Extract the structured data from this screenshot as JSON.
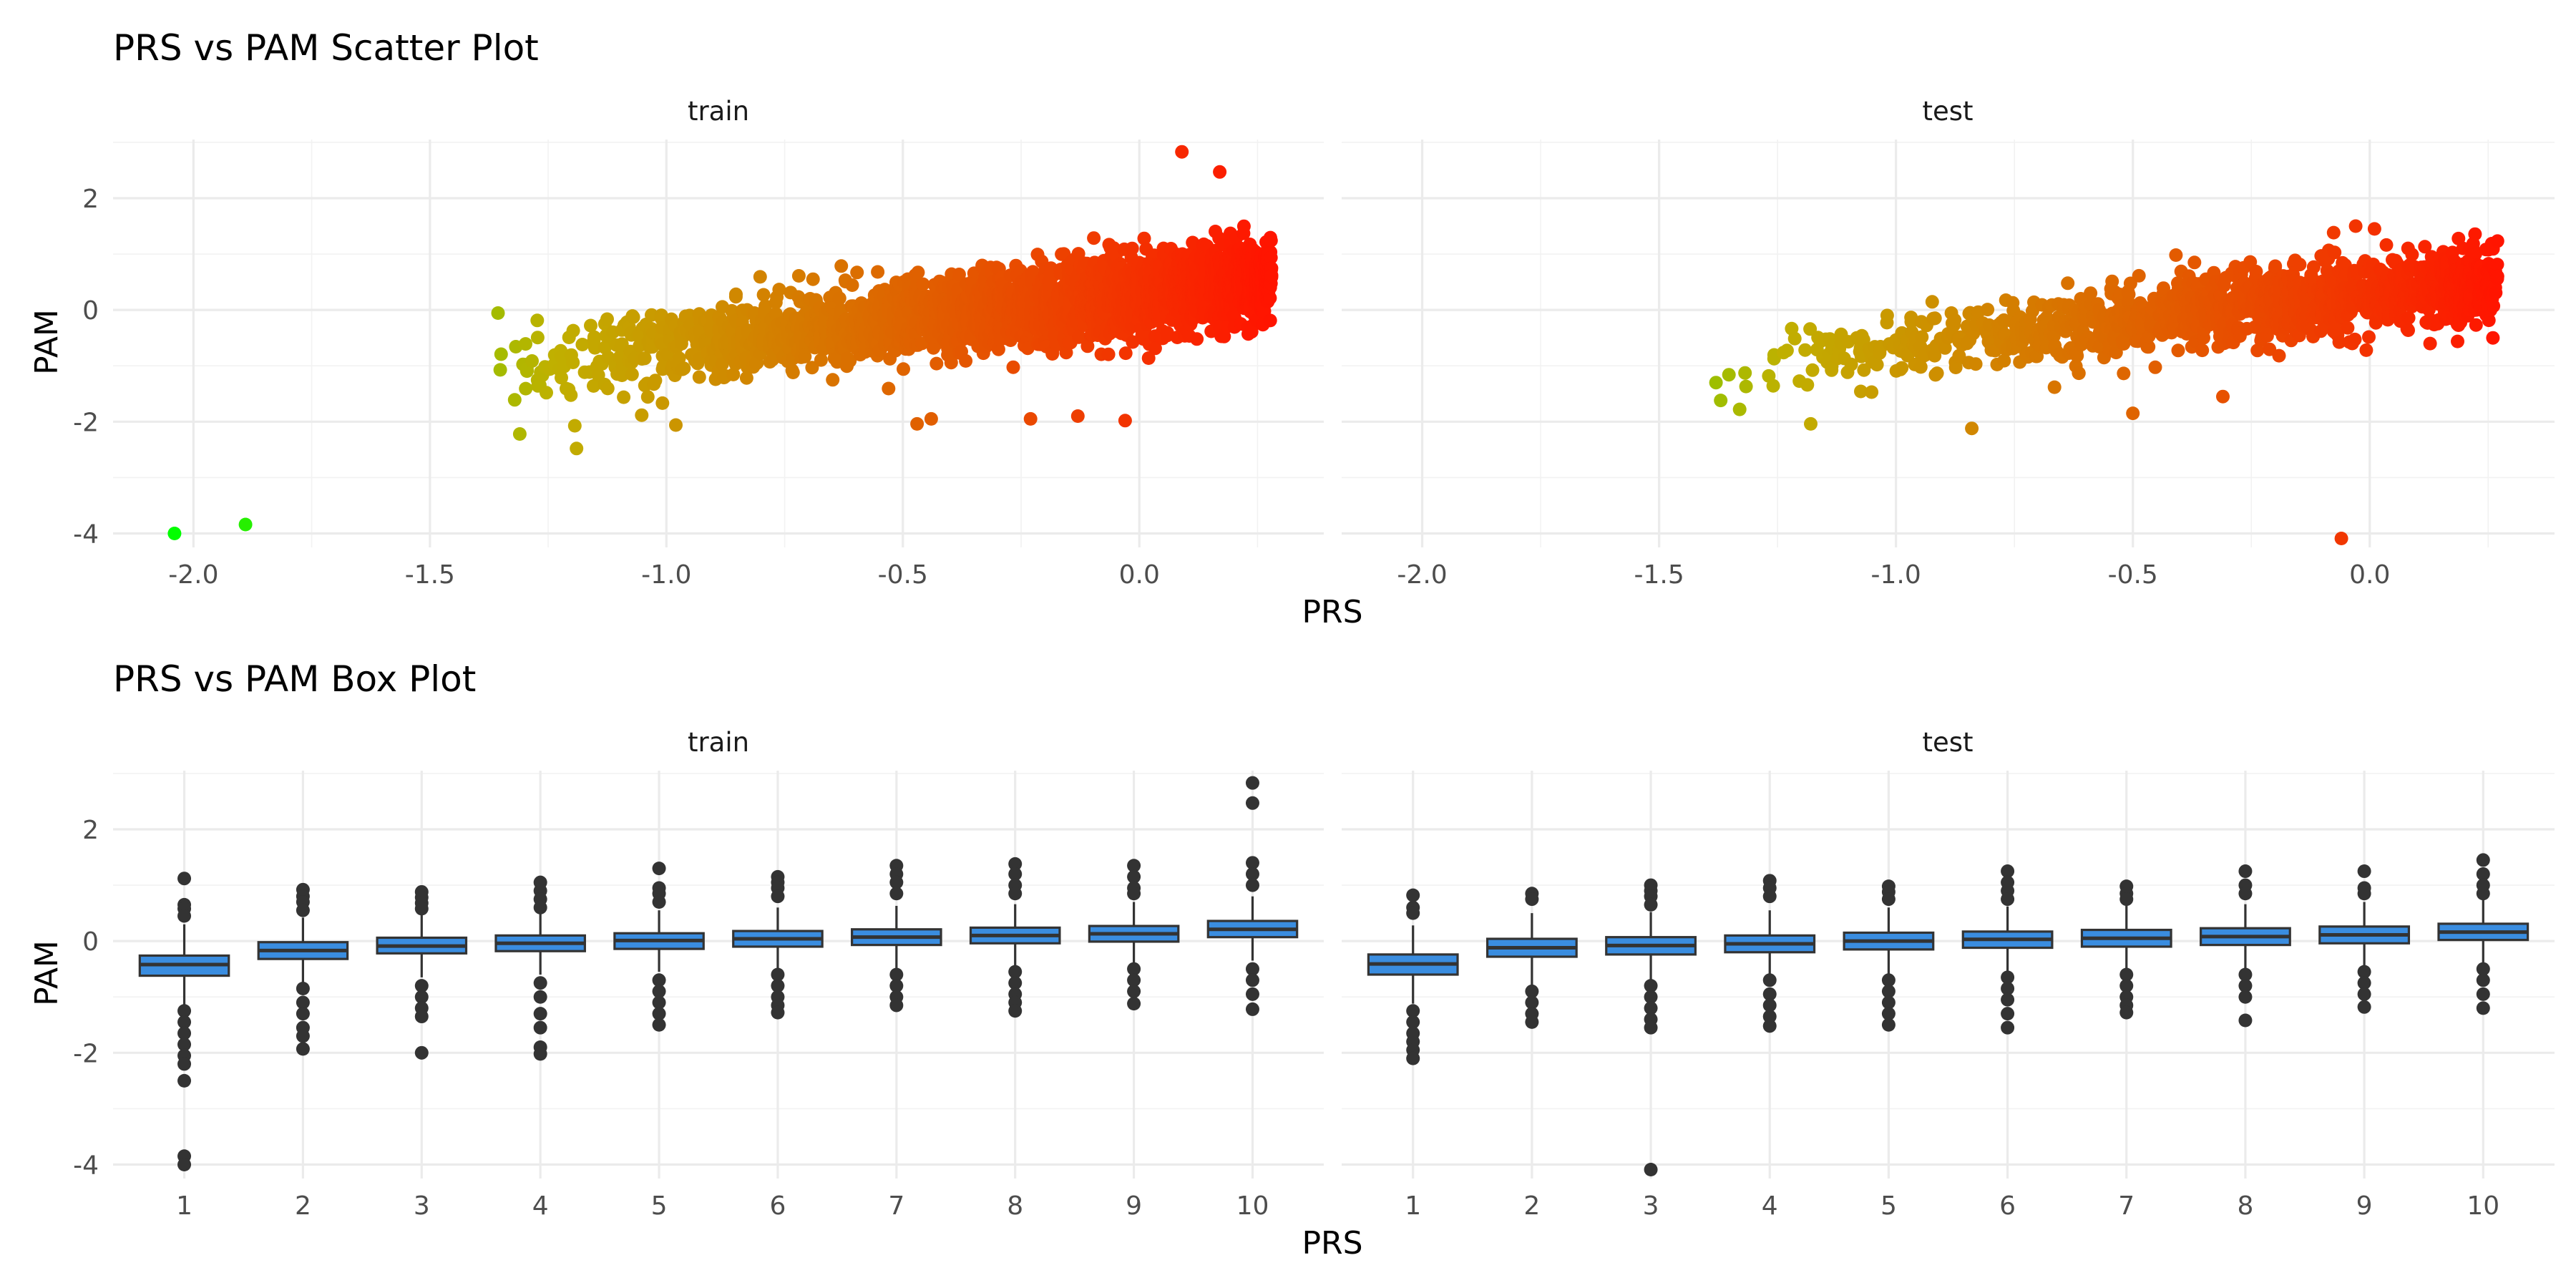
{
  "chart_data": [
    {
      "type": "scatter",
      "title": "PRS vs PAM Scatter Plot",
      "xlabel": "PRS",
      "ylabel": "PAM",
      "xlim": [
        -2.17,
        0.39
      ],
      "ylim": [
        -4.25,
        3.05
      ],
      "x_ticks": [
        -2.0,
        -1.5,
        -1.0,
        -0.5,
        0.0
      ],
      "x_tick_labels": [
        "-2.0",
        "-1.5",
        "-1.0",
        "-0.5",
        "0.0"
      ],
      "y_ticks": [
        -4,
        -2,
        0,
        2
      ],
      "y_tick_labels": [
        "-4",
        "-2",
        "0",
        "2"
      ],
      "grid": true,
      "color_scale": {
        "low": "#00ff00",
        "mid": "#c0b000",
        "high": "#ff1500"
      },
      "facets": [
        {
          "name": "train",
          "cloud": {
            "x_range": [
              -1.42,
              0.28
            ],
            "slope": 0.95,
            "intercept": 0.28,
            "spread": 0.35,
            "count": 2600
          },
          "points": [
            {
              "x": -2.04,
              "y": -4.0
            },
            {
              "x": -1.89,
              "y": -3.84
            },
            {
              "x": 0.09,
              "y": 2.83
            },
            {
              "x": 0.17,
              "y": 2.47
            },
            {
              "x": -1.31,
              "y": -2.22
            },
            {
              "x": -1.19,
              "y": -2.48
            },
            {
              "x": -0.47,
              "y": -2.04
            },
            {
              "x": -0.23,
              "y": -1.95
            },
            {
              "x": -0.03,
              "y": -1.98
            },
            {
              "x": -0.69,
              "y": 0.55
            },
            {
              "x": -0.72,
              "y": 0.61
            },
            {
              "x": -1.16,
              "y": -0.28
            },
            {
              "x": -1.13,
              "y": -0.25
            },
            {
              "x": -0.98,
              "y": -2.06
            },
            {
              "x": -0.13,
              "y": -1.9
            },
            {
              "x": -0.44,
              "y": -1.95
            }
          ]
        },
        {
          "name": "test",
          "cloud": {
            "x_range": [
              -1.38,
              0.27
            ],
            "slope": 0.95,
            "intercept": 0.28,
            "spread": 0.33,
            "count": 1300
          },
          "points": [
            {
              "x": -0.06,
              "y": -4.09
            },
            {
              "x": -0.84,
              "y": -2.12
            },
            {
              "x": -1.38,
              "y": -1.3
            },
            {
              "x": -1.37,
              "y": -1.62
            },
            {
              "x": -1.33,
              "y": -1.78
            },
            {
              "x": -1.18,
              "y": -2.04
            },
            {
              "x": -0.5,
              "y": -1.85
            },
            {
              "x": -0.31,
              "y": -1.55
            },
            {
              "x": 0.01,
              "y": 1.45
            },
            {
              "x": -0.37,
              "y": 0.85
            },
            {
              "x": 0.26,
              "y": -0.5
            },
            {
              "x": -0.2,
              "y": 0.75
            }
          ]
        }
      ]
    },
    {
      "type": "box",
      "title": "PRS vs PAM Box Plot",
      "xlabel": "PRS",
      "ylabel": "PAM",
      "categories": [
        "1",
        "2",
        "3",
        "4",
        "5",
        "6",
        "7",
        "8",
        "9",
        "10"
      ],
      "ylim": [
        -4.25,
        3.05
      ],
      "y_ticks": [
        -4,
        -2,
        0,
        2
      ],
      "y_tick_labels": [
        "-4",
        "-2",
        "0",
        "2"
      ],
      "grid": true,
      "box_fill": "#3a8de0",
      "box_stroke": "#333333",
      "facets": [
        {
          "name": "train",
          "boxes": [
            {
              "q1": -0.62,
              "median": -0.42,
              "q3": -0.26,
              "whisker_low": -1.15,
              "whisker_high": 0.3,
              "outliers": [
                1.12,
                0.65,
                0.58,
                0.45,
                -1.25,
                -1.45,
                -1.65,
                -1.85,
                -2.05,
                -2.2,
                -2.5,
                -3.85,
                -4.0
              ]
            },
            {
              "q1": -0.32,
              "median": -0.17,
              "q3": -0.02,
              "whisker_low": -0.8,
              "whisker_high": 0.42,
              "outliers": [
                0.92,
                0.8,
                0.7,
                0.55,
                -0.85,
                -1.1,
                -1.3,
                -1.55,
                -1.7,
                -1.93
              ]
            },
            {
              "q1": -0.22,
              "median": -0.09,
              "q3": 0.06,
              "whisker_low": -0.65,
              "whisker_high": 0.5,
              "outliers": [
                0.88,
                0.78,
                0.68,
                0.58,
                -0.8,
                -1.0,
                -1.2,
                -1.35,
                -2.0
              ]
            },
            {
              "q1": -0.18,
              "median": -0.04,
              "q3": 0.1,
              "whisker_low": -0.6,
              "whisker_high": 0.52,
              "outliers": [
                1.05,
                0.9,
                0.75,
                0.6,
                -0.75,
                -1.0,
                -1.3,
                -1.55,
                -1.9,
                -2.02
              ]
            },
            {
              "q1": -0.14,
              "median": 0.01,
              "q3": 0.14,
              "whisker_low": -0.55,
              "whisker_high": 0.55,
              "outliers": [
                1.3,
                0.95,
                0.85,
                0.7,
                -0.7,
                -0.9,
                -1.1,
                -1.3,
                -1.5
              ]
            },
            {
              "q1": -0.1,
              "median": 0.04,
              "q3": 0.18,
              "whisker_low": -0.5,
              "whisker_high": 0.6,
              "outliers": [
                1.15,
                1.05,
                0.95,
                0.8,
                -0.6,
                -0.8,
                -1.0,
                -1.15,
                -1.28
              ]
            },
            {
              "q1": -0.07,
              "median": 0.07,
              "q3": 0.21,
              "whisker_low": -0.48,
              "whisker_high": 0.63,
              "outliers": [
                1.35,
                1.2,
                1.05,
                0.85,
                -0.6,
                -0.8,
                -1.0,
                -1.15
              ]
            },
            {
              "q1": -0.04,
              "median": 0.1,
              "q3": 0.24,
              "whisker_low": -0.45,
              "whisker_high": 0.66,
              "outliers": [
                1.38,
                1.2,
                1.0,
                0.85,
                -0.55,
                -0.75,
                -0.95,
                -1.1,
                -1.25
              ]
            },
            {
              "q1": -0.01,
              "median": 0.13,
              "q3": 0.27,
              "whisker_low": -0.42,
              "whisker_high": 0.7,
              "outliers": [
                1.35,
                1.15,
                0.95,
                0.85,
                -0.5,
                -0.7,
                -0.9,
                -1.12
              ]
            },
            {
              "q1": 0.07,
              "median": 0.21,
              "q3": 0.36,
              "whisker_low": -0.35,
              "whisker_high": 0.8,
              "outliers": [
                2.83,
                2.47,
                1.4,
                1.2,
                1.0,
                -0.5,
                -0.7,
                -0.95,
                -1.22
              ]
            }
          ]
        },
        {
          "name": "test",
          "boxes": [
            {
              "q1": -0.6,
              "median": -0.41,
              "q3": -0.24,
              "whisker_low": -1.12,
              "whisker_high": 0.28,
              "outliers": [
                0.82,
                0.6,
                0.5,
                -1.25,
                -1.45,
                -1.65,
                -1.8,
                -1.95,
                -2.1
              ]
            },
            {
              "q1": -0.28,
              "median": -0.12,
              "q3": 0.04,
              "whisker_low": -0.8,
              "whisker_high": 0.5,
              "outliers": [
                0.85,
                0.75,
                -0.9,
                -1.1,
                -1.3,
                -1.45
              ]
            },
            {
              "q1": -0.24,
              "median": -0.08,
              "q3": 0.07,
              "whisker_low": -0.7,
              "whisker_high": 0.52,
              "outliers": [
                1.0,
                0.9,
                0.8,
                0.65,
                -0.8,
                -1.0,
                -1.2,
                -1.4,
                -1.55,
                -4.09
              ]
            },
            {
              "q1": -0.2,
              "median": -0.05,
              "q3": 0.1,
              "whisker_low": -0.65,
              "whisker_high": 0.55,
              "outliers": [
                1.08,
                0.95,
                0.8,
                -0.7,
                -0.95,
                -1.15,
                -1.35,
                -1.52
              ]
            },
            {
              "q1": -0.15,
              "median": 0.0,
              "q3": 0.15,
              "whisker_low": -0.6,
              "whisker_high": 0.6,
              "outliers": [
                0.98,
                0.88,
                0.75,
                -0.7,
                -0.9,
                -1.1,
                -1.3,
                -1.5
              ]
            },
            {
              "q1": -0.12,
              "median": 0.03,
              "q3": 0.17,
              "whisker_low": -0.55,
              "whisker_high": 0.62,
              "outliers": [
                1.25,
                1.05,
                0.9,
                0.75,
                -0.65,
                -0.85,
                -1.05,
                -1.3,
                -1.55
              ]
            },
            {
              "q1": -0.1,
              "median": 0.05,
              "q3": 0.2,
              "whisker_low": -0.53,
              "whisker_high": 0.63,
              "outliers": [
                0.98,
                0.85,
                0.75,
                -0.6,
                -0.8,
                -1.0,
                -1.15,
                -1.28
              ]
            },
            {
              "q1": -0.07,
              "median": 0.08,
              "q3": 0.23,
              "whisker_low": -0.5,
              "whisker_high": 0.66,
              "outliers": [
                1.25,
                1.0,
                0.85,
                -0.6,
                -0.8,
                -1.0,
                -1.42
              ]
            },
            {
              "q1": -0.04,
              "median": 0.11,
              "q3": 0.26,
              "whisker_low": -0.46,
              "whisker_high": 0.7,
              "outliers": [
                1.25,
                0.95,
                0.85,
                -0.55,
                -0.75,
                -0.95,
                -1.18
              ]
            },
            {
              "q1": 0.02,
              "median": 0.16,
              "q3": 0.31,
              "whisker_low": -0.4,
              "whisker_high": 0.75,
              "outliers": [
                1.45,
                1.2,
                1.0,
                0.85,
                -0.5,
                -0.7,
                -0.95,
                -1.2
              ]
            }
          ]
        }
      ]
    }
  ]
}
